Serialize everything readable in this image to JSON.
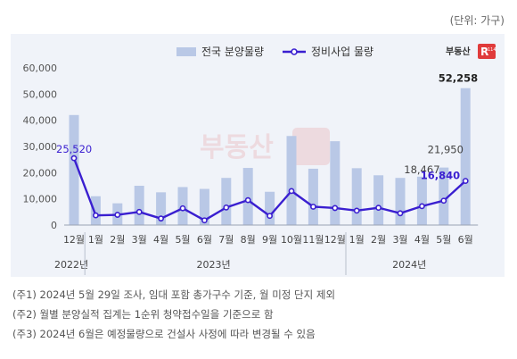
{
  "unit_label": "(단위: 가구)",
  "brand": {
    "name": "부동산",
    "badge": "R",
    "badge_sub": "114",
    "color": "#e03b3b"
  },
  "notes": [
    "(주1) 2024년 5월 29일 조사, 임대 포함 총가구수 기준, 월 미정 단지 제외",
    "(주2) 월별 분양실적 집계는 1순위 청약접수일을 기준으로 함",
    "(주3) 2024년 6월은 예정물량으로 건설사 사정에 따라 변경될 수 있음"
  ],
  "chart_data": {
    "type": "bar",
    "categories": [
      "12월",
      "1월",
      "2월",
      "3월",
      "4월",
      "5월",
      "6월",
      "7월",
      "8월",
      "9월",
      "10월",
      "11월",
      "12월",
      "1월",
      "2월",
      "3월",
      "4월",
      "5월",
      "6월"
    ],
    "year_groups": [
      {
        "label": "2022년",
        "start": 0,
        "end": 0
      },
      {
        "label": "2023년",
        "start": 1,
        "end": 12
      },
      {
        "label": "2024년",
        "start": 13,
        "end": 18
      }
    ],
    "series": [
      {
        "name": "전국 분양물량",
        "kind": "bar",
        "color": "#b9c8e6",
        "values": [
          42000,
          11000,
          8300,
          15000,
          12500,
          14500,
          13800,
          18000,
          21800,
          12700,
          34000,
          21500,
          32000,
          21700,
          19000,
          18000,
          18467,
          21950,
          52258
        ]
      },
      {
        "name": "정비사업 물량",
        "kind": "line",
        "color": "#3a1fd0",
        "values": [
          25520,
          3700,
          3900,
          5000,
          2500,
          6400,
          1800,
          6700,
          9500,
          3500,
          13000,
          7000,
          6500,
          5500,
          6600,
          4500,
          7200,
          9300,
          16840
        ]
      }
    ],
    "data_labels": [
      {
        "series": 1,
        "index": 0,
        "text": "25,520",
        "color": "#3a1fd0",
        "bold": false
      },
      {
        "series": 0,
        "index": 16,
        "text": "18,467",
        "color": "#444444",
        "bold": false
      },
      {
        "series": 0,
        "index": 17,
        "text": "21,950",
        "color": "#444444",
        "bold": false
      },
      {
        "series": 0,
        "index": 18,
        "text": "52,258",
        "color": "#222222",
        "bold": true
      },
      {
        "series": 1,
        "index": 18,
        "text": "16,840",
        "color": "#3a1fd0",
        "bold": true
      }
    ],
    "y_ticks": [
      "0",
      "10,000",
      "20,000",
      "30,000",
      "40,000",
      "50,000",
      "60,000"
    ],
    "ylim": [
      0,
      60000
    ],
    "grid": false,
    "legend_position": "top-center"
  }
}
